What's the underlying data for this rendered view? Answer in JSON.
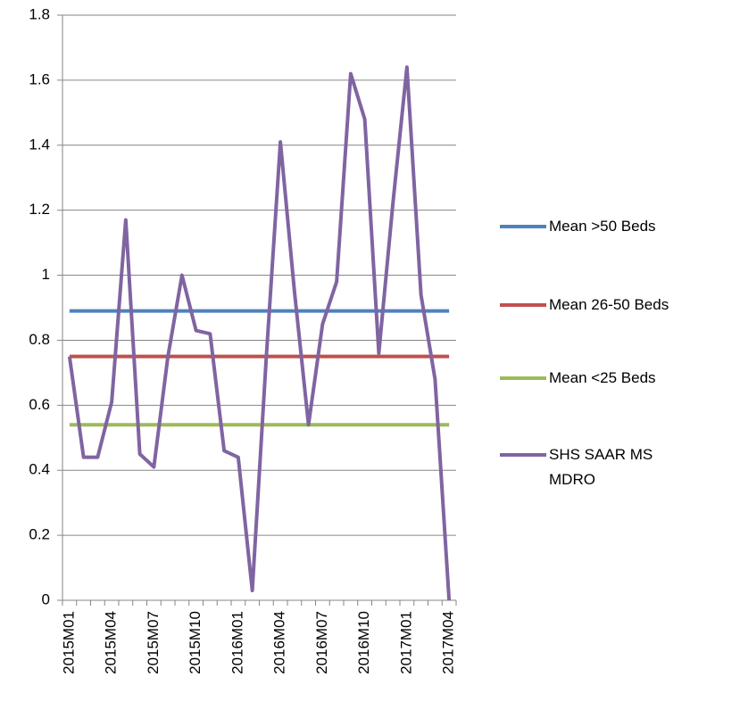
{
  "chart_data": {
    "type": "line",
    "categories": [
      "2015M01",
      null,
      null,
      "2015M04",
      null,
      null,
      "2015M07",
      null,
      null,
      "2015M10",
      null,
      null,
      "2016M01",
      null,
      null,
      "2016M04",
      null,
      null,
      "2016M07",
      null,
      null,
      "2016M10",
      null,
      null,
      "2017M01",
      null,
      null,
      "2017M04"
    ],
    "series": [
      {
        "name": "Mean >50 Beds",
        "color": "#4f81bd",
        "values": [
          0.89,
          0.89,
          0.89,
          0.89,
          0.89,
          0.89,
          0.89,
          0.89,
          0.89,
          0.89,
          0.89,
          0.89,
          0.89,
          0.89,
          0.89,
          0.89,
          0.89,
          0.89,
          0.89,
          0.89,
          0.89,
          0.89,
          0.89,
          0.89,
          0.89,
          0.89,
          0.89,
          0.89
        ]
      },
      {
        "name": "Mean 26-50 Beds",
        "color": "#c0504d",
        "values": [
          0.75,
          0.75,
          0.75,
          0.75,
          0.75,
          0.75,
          0.75,
          0.75,
          0.75,
          0.75,
          0.75,
          0.75,
          0.75,
          0.75,
          0.75,
          0.75,
          0.75,
          0.75,
          0.75,
          0.75,
          0.75,
          0.75,
          0.75,
          0.75,
          0.75,
          0.75,
          0.75,
          0.75
        ]
      },
      {
        "name": "Mean <25 Beds",
        "color": "#9bbb59",
        "values": [
          0.54,
          0.54,
          0.54,
          0.54,
          0.54,
          0.54,
          0.54,
          0.54,
          0.54,
          0.54,
          0.54,
          0.54,
          0.54,
          0.54,
          0.54,
          0.54,
          0.54,
          0.54,
          0.54,
          0.54,
          0.54,
          0.54,
          0.54,
          0.54,
          0.54,
          0.54,
          0.54,
          0.54
        ]
      },
      {
        "name": "SHS SAAR MS MDRO",
        "color": "#8064a2",
        "values": [
          0.75,
          0.44,
          0.44,
          0.61,
          1.17,
          0.45,
          0.41,
          0.75,
          1.0,
          0.83,
          0.82,
          0.46,
          0.44,
          0.03,
          0.75,
          1.41,
          0.95,
          0.54,
          0.85,
          0.98,
          1.62,
          1.48,
          0.76,
          1.22,
          1.64,
          0.94,
          0.68,
          0
        ]
      }
    ],
    "ylim": [
      0,
      1.8
    ],
    "yticks": [
      0,
      0.2,
      0.4,
      0.6,
      0.8,
      1,
      1.2,
      1.4,
      1.6,
      1.8
    ],
    "grid": true,
    "legend": "right"
  }
}
